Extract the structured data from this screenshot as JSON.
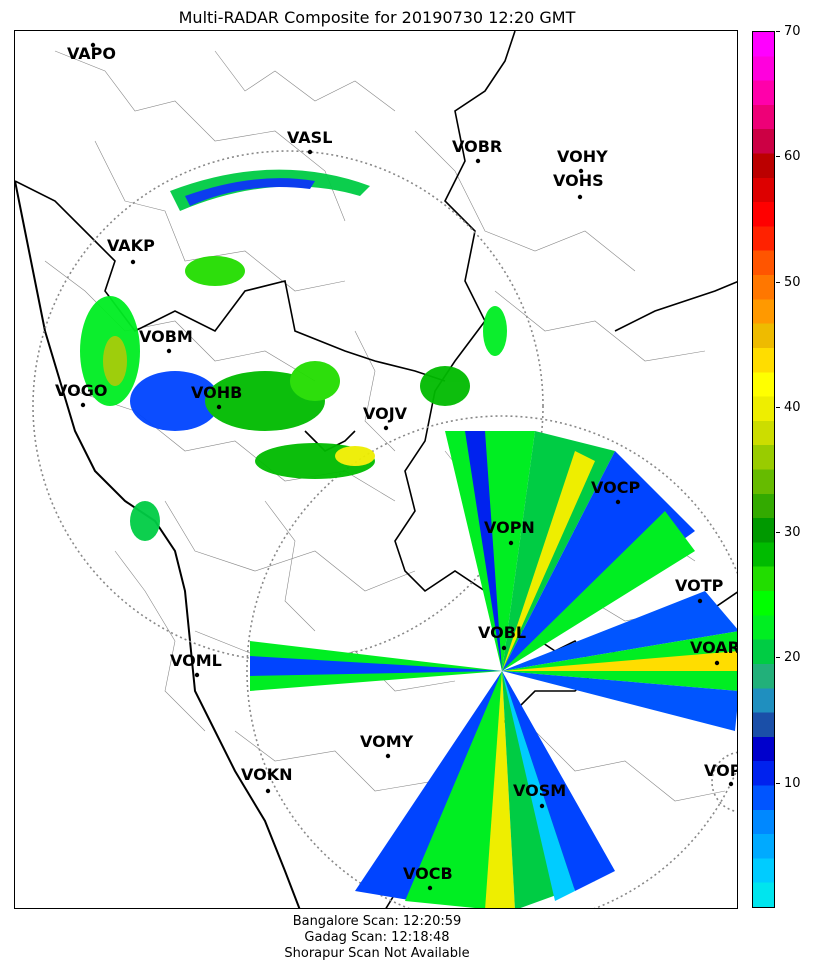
{
  "title": "Multi-RADAR Composite for 20190730 12:20 GMT",
  "colorbar": {
    "ticks": [
      10,
      20,
      30,
      40,
      50,
      60,
      70
    ],
    "tick_labels": [
      "10",
      "20",
      "30",
      "40",
      "50",
      "60",
      "70"
    ],
    "range": [
      0,
      70
    ],
    "colors": [
      "#00e5ee",
      "#00ccff",
      "#00aaff",
      "#0088ff",
      "#0055ff",
      "#0022ee",
      "#0000cc",
      "#1a4fa8",
      "#1f8fbf",
      "#22b07a",
      "#00cc44",
      "#00ee22",
      "#00ff00",
      "#22dd00",
      "#00bb00",
      "#009900",
      "#33aa00",
      "#66bb00",
      "#99cc00",
      "#ccdd00",
      "#eeee00",
      "#ffff00",
      "#ffdd00",
      "#eebb00",
      "#ff9900",
      "#ff7700",
      "#ff5500",
      "#ff2200",
      "#ff0000",
      "#dd0000",
      "#bb0000",
      "#cc0044",
      "#ee0077",
      "#ff00aa",
      "#ff00dd",
      "#ff00ff"
    ]
  },
  "stations": [
    {
      "name": "VAPO"
    },
    {
      "name": "VASL"
    },
    {
      "name": "VOBR"
    },
    {
      "name": "VOHY"
    },
    {
      "name": "VOHS"
    },
    {
      "name": "VAKP"
    },
    {
      "name": "VOBM"
    },
    {
      "name": "VOGO"
    },
    {
      "name": "VOHB"
    },
    {
      "name": "VOJV"
    },
    {
      "name": "VOCP"
    },
    {
      "name": "VOPN"
    },
    {
      "name": "VOTP"
    },
    {
      "name": "VOBL"
    },
    {
      "name": "VOAR"
    },
    {
      "name": "VOML"
    },
    {
      "name": "VOMY"
    },
    {
      "name": "VOKN"
    },
    {
      "name": "VOPC"
    },
    {
      "name": "VOSM"
    },
    {
      "name": "VOCB"
    }
  ],
  "footer": {
    "line1": "Bangalore Scan: 12:20:59",
    "line2": "Gadag Scan: 12:18:48",
    "line3": "Shorapur Scan Not Available"
  }
}
